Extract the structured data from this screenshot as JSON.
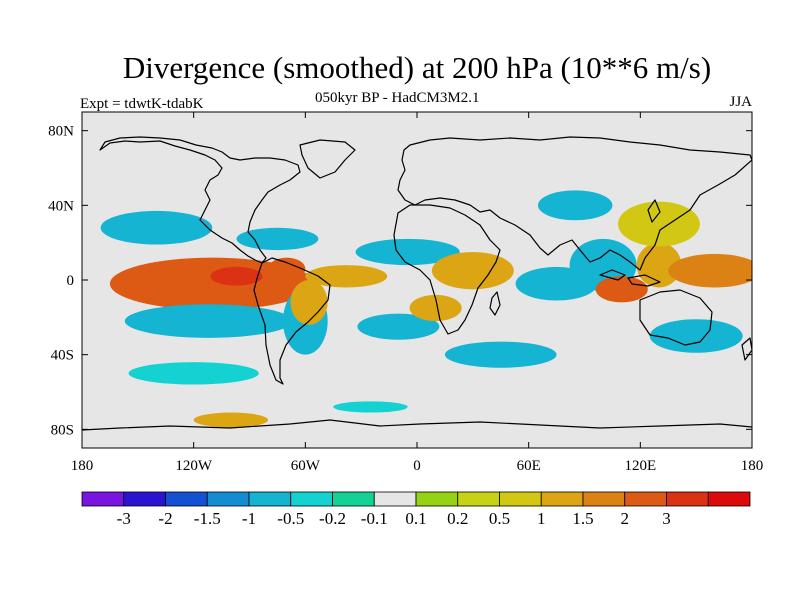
{
  "title": "Divergence (smoothed) at 200 hPa (10**6 m/s)",
  "subtitle": "050kyr BP - HadCM3M2.1",
  "experiment": "Expt = tdwtK-tdabK",
  "season": "JJA",
  "map": {
    "projection": "cylindrical equidistant",
    "lon_range": [
      -180,
      180
    ],
    "lat_range": [
      -90,
      90
    ],
    "background_color": "#e6e6e6",
    "coastline_color": "#000000"
  },
  "axes": {
    "lat_ticks": [
      {
        "value": 80,
        "label": "80N"
      },
      {
        "value": 40,
        "label": "40N"
      },
      {
        "value": 0,
        "label": "0"
      },
      {
        "value": -40,
        "label": "40S"
      },
      {
        "value": -80,
        "label": "80S"
      }
    ],
    "lon_ticks": [
      {
        "value": -180,
        "label": "180"
      },
      {
        "value": -120,
        "label": "120W"
      },
      {
        "value": -60,
        "label": "60W"
      },
      {
        "value": 0,
        "label": "0"
      },
      {
        "value": 60,
        "label": "60E"
      },
      {
        "value": 120,
        "label": "120E"
      },
      {
        "value": 180,
        "label": "180"
      }
    ]
  },
  "colorbar": {
    "colors": [
      "#7a14e0",
      "#2a14d2",
      "#1450d2",
      "#148cd2",
      "#14b4d2",
      "#14d2d2",
      "#14d296",
      "#e6e6e6",
      "#96d214",
      "#c8d214",
      "#d2c814",
      "#dca514",
      "#dc8214",
      "#dc5a14",
      "#dc3214",
      "#dc0a0a"
    ],
    "labels": [
      "-3",
      "-2",
      "-1.5",
      "-1",
      "-0.5",
      "-0.2",
      "-0.1",
      "0.1",
      "0.2",
      "0.5",
      "1",
      "1.5",
      "2",
      "3"
    ]
  },
  "chart_data": {
    "type": "heatmap",
    "title": "Divergence (smoothed) at 200 hPa (10**6 m/s)",
    "subtitle": "050kyr BP - HadCM3M2.1",
    "variable": "200 hPa divergence difference",
    "season": "JJA",
    "levels": [
      -3,
      -2,
      -1.5,
      -1,
      -0.5,
      -0.2,
      -0.1,
      0.1,
      0.2,
      0.5,
      1,
      1.5,
      2,
      3
    ],
    "xlabel": "",
    "ylabel": "",
    "xlim": [
      -180,
      180
    ],
    "ylim": [
      -90,
      90
    ],
    "features": [
      {
        "lon": -110,
        "lat": -2,
        "rx": 55,
        "ry": 14,
        "level": 2
      },
      {
        "lon": -97,
        "lat": 2,
        "rx": 14,
        "ry": 5,
        "level": 3
      },
      {
        "lon": -70,
        "lat": 6,
        "rx": 10,
        "ry": 6,
        "level": 2
      },
      {
        "lon": -112,
        "lat": -22,
        "rx": 45,
        "ry": 9,
        "level": -1
      },
      {
        "lon": -140,
        "lat": 28,
        "rx": 30,
        "ry": 9,
        "level": -1
      },
      {
        "lon": -75,
        "lat": 22,
        "rx": 22,
        "ry": 6,
        "level": -1
      },
      {
        "lon": -60,
        "lat": -22,
        "rx": 12,
        "ry": 18,
        "level": -1
      },
      {
        "lon": -38,
        "lat": 2,
        "rx": 22,
        "ry": 6,
        "level": 1
      },
      {
        "lon": -58,
        "lat": -12,
        "rx": 10,
        "ry": 12,
        "level": 1
      },
      {
        "lon": -5,
        "lat": 15,
        "rx": 28,
        "ry": 7,
        "level": -1
      },
      {
        "lon": -10,
        "lat": -25,
        "rx": 22,
        "ry": 7,
        "level": -1
      },
      {
        "lon": 10,
        "lat": -15,
        "rx": 14,
        "ry": 7,
        "level": 1
      },
      {
        "lon": 30,
        "lat": 5,
        "rx": 22,
        "ry": 10,
        "level": 1
      },
      {
        "lon": 75,
        "lat": -2,
        "rx": 22,
        "ry": 9,
        "level": -1
      },
      {
        "lon": 100,
        "lat": 8,
        "rx": 18,
        "ry": 14,
        "level": -1
      },
      {
        "lon": 110,
        "lat": -5,
        "rx": 14,
        "ry": 7,
        "level": 2
      },
      {
        "lon": 130,
        "lat": 8,
        "rx": 12,
        "ry": 12,
        "level": 1
      },
      {
        "lon": 160,
        "lat": 5,
        "rx": 25,
        "ry": 9,
        "level": 1.5
      },
      {
        "lon": 130,
        "lat": 30,
        "rx": 22,
        "ry": 12,
        "level": 0.5
      },
      {
        "lon": 85,
        "lat": 40,
        "rx": 20,
        "ry": 8,
        "level": -1
      },
      {
        "lon": 150,
        "lat": -30,
        "rx": 25,
        "ry": 9,
        "level": -1
      },
      {
        "lon": 45,
        "lat": -40,
        "rx": 30,
        "ry": 7,
        "level": -1
      },
      {
        "lon": -120,
        "lat": -50,
        "rx": 35,
        "ry": 6,
        "level": -0.5
      },
      {
        "lon": -100,
        "lat": -75,
        "rx": 20,
        "ry": 4,
        "level": 1
      },
      {
        "lon": -25,
        "lat": -68,
        "rx": 20,
        "ry": 3,
        "level": -0.5
      }
    ]
  }
}
